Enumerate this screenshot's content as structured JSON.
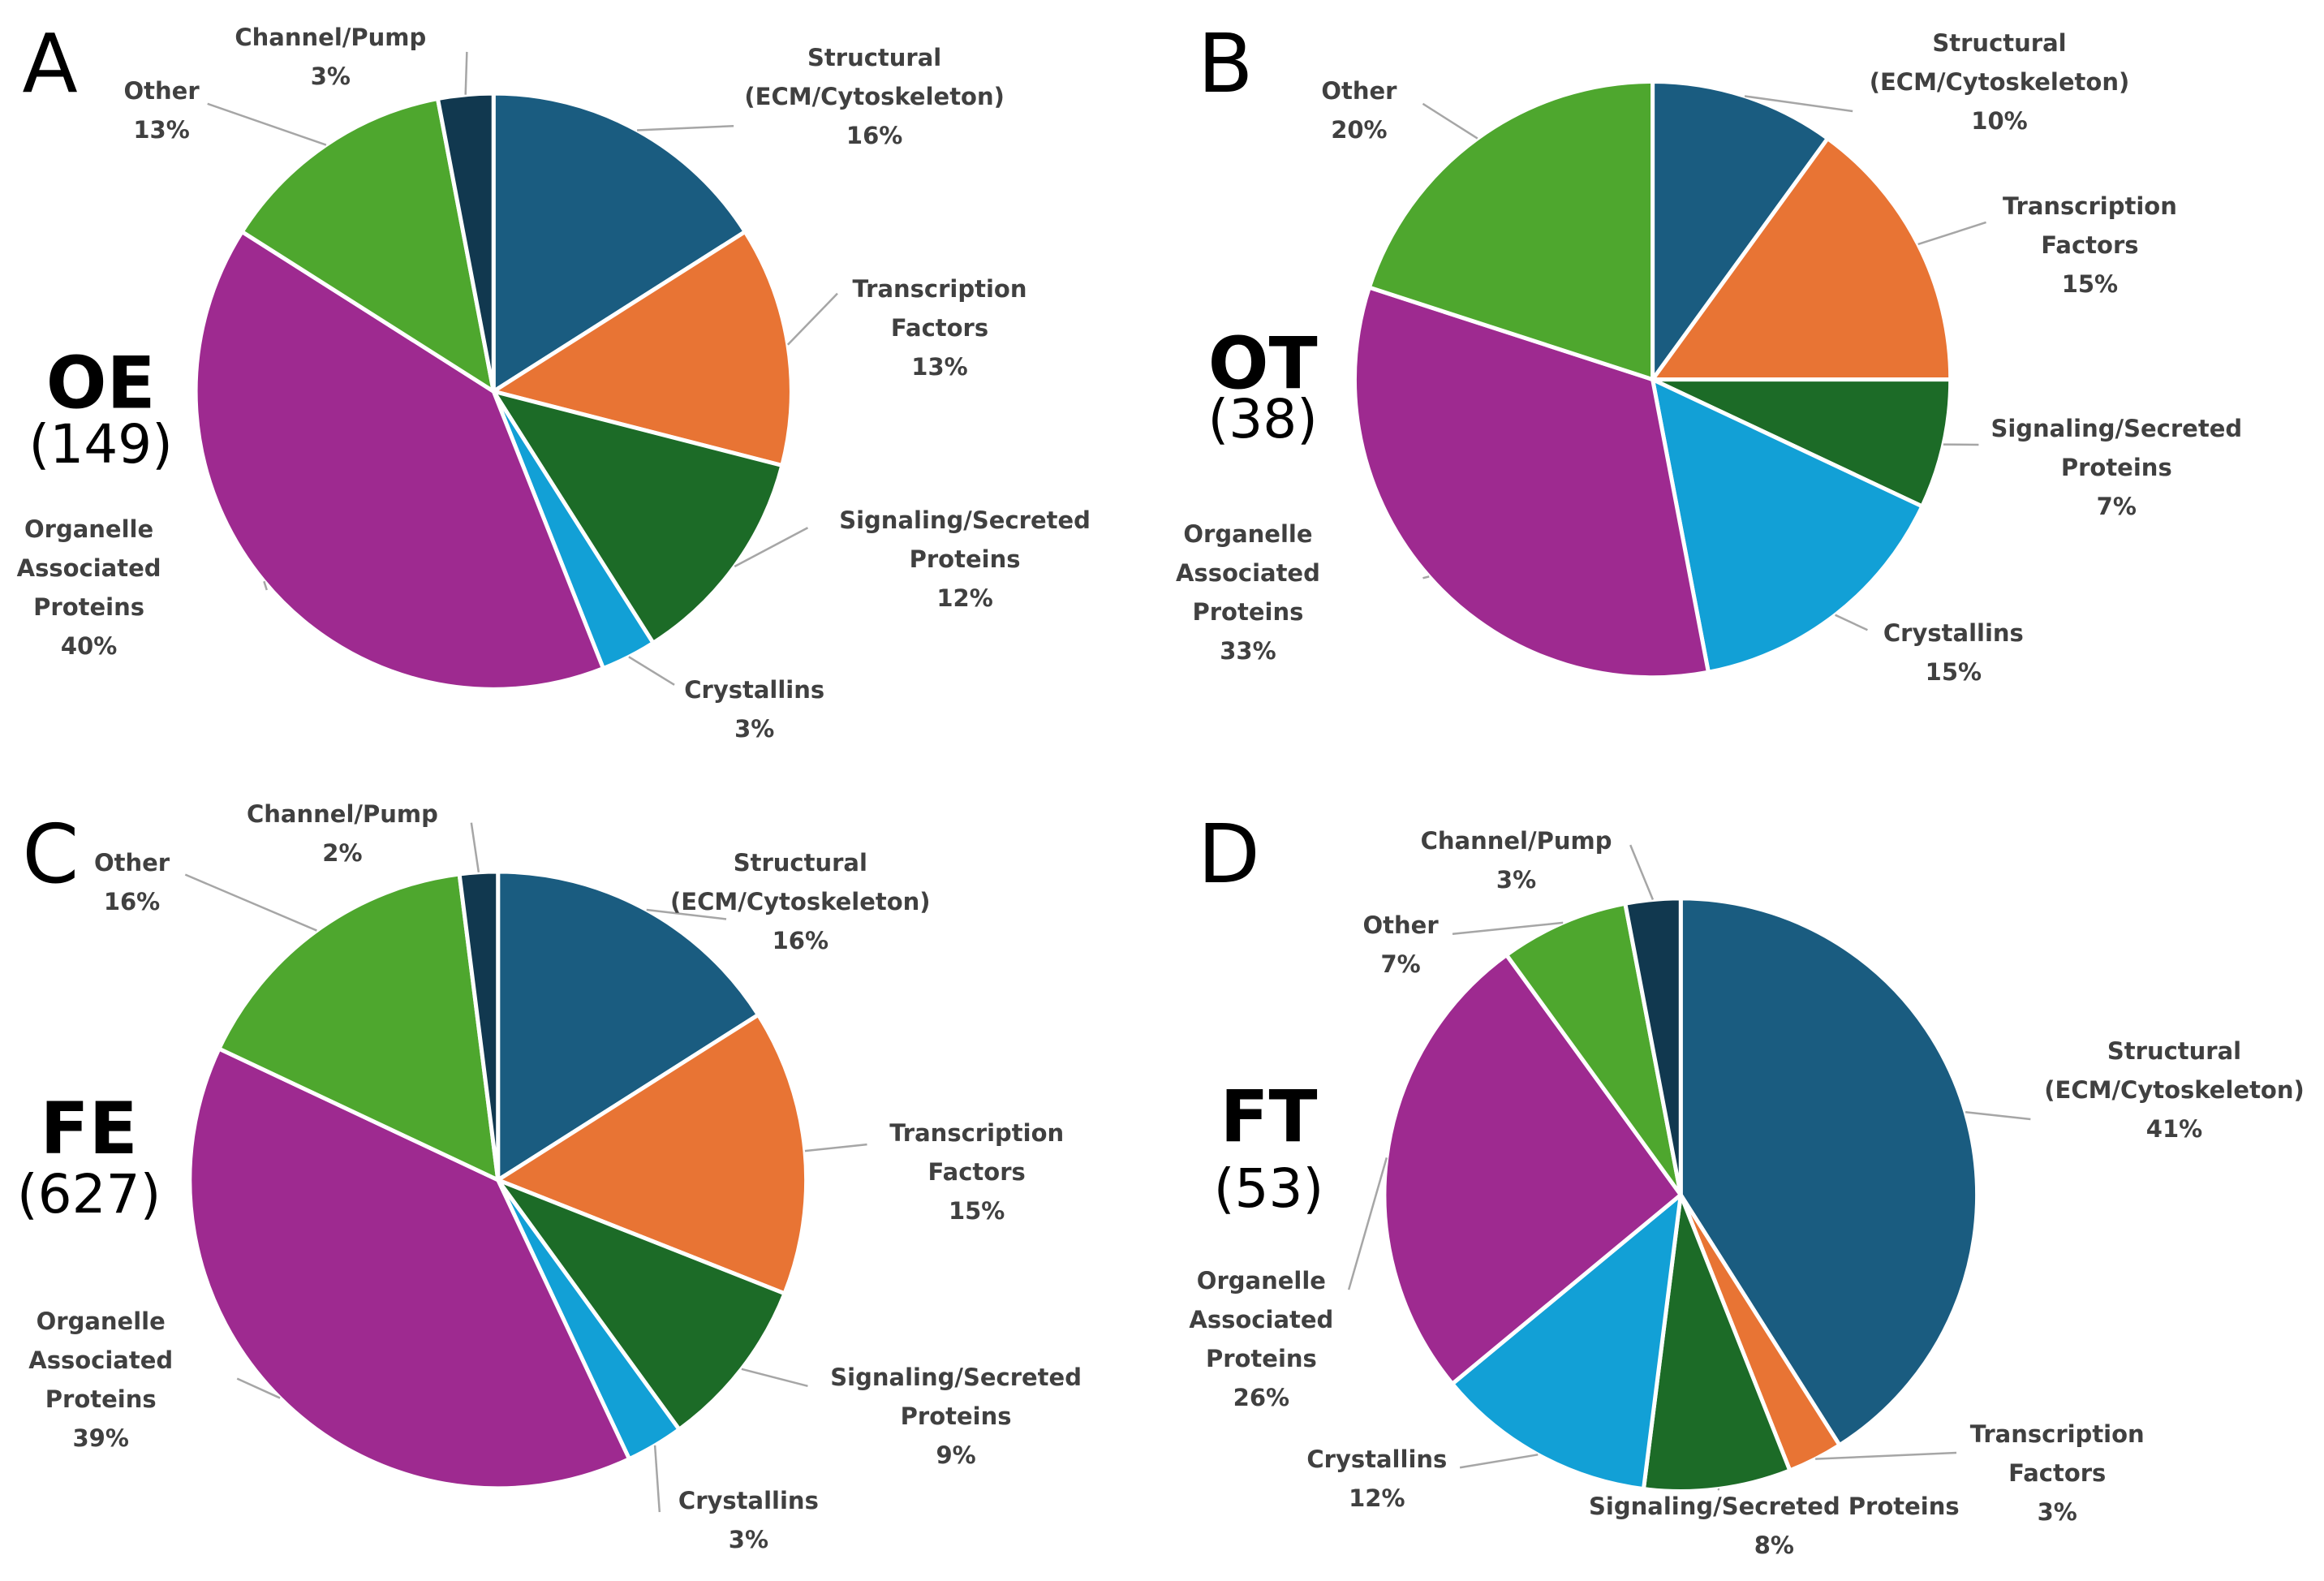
{
  "chart_data": [
    {
      "type": "pie",
      "panel": "A",
      "title": "OE",
      "subtitle": "(149)",
      "categories": [
        "Structural (ECM/Cytoskeleton)",
        "Transcription Factors",
        "Signaling/Secreted Proteins",
        "Crystallins",
        "Organelle Associated Proteins",
        "Other",
        "Channel/Pump"
      ],
      "values": [
        16,
        13,
        12,
        3,
        40,
        13,
        3
      ],
      "value_labels": [
        "16%",
        "13%",
        "12%",
        "3%",
        "40%",
        "13%",
        "3%"
      ],
      "colors": [
        "#1a5c80",
        "#e87434",
        "#1c6b27",
        "#12a0d6",
        "#9e2a90",
        "#4ea72e",
        "#11384f"
      ]
    },
    {
      "type": "pie",
      "panel": "B",
      "title": "OT",
      "subtitle": "(38)",
      "categories": [
        "Structural (ECM/Cytoskeleton)",
        "Transcription Factors",
        "Signaling/Secreted Proteins",
        "Crystallins",
        "Organelle Associated Proteins",
        "Other"
      ],
      "values": [
        10,
        15,
        7,
        15,
        33,
        20
      ],
      "value_labels": [
        "10%",
        "15%",
        "7%",
        "15%",
        "33%",
        "20%"
      ],
      "colors": [
        "#1a5c80",
        "#e87434",
        "#1c6b27",
        "#12a0d6",
        "#9e2a90",
        "#4ea72e"
      ]
    },
    {
      "type": "pie",
      "panel": "C",
      "title": "FE",
      "subtitle": "(627)",
      "categories": [
        "Structural (ECM/Cytoskeleton)",
        "Transcription Factors",
        "Signaling/Secreted Proteins",
        "Crystallins",
        "Organelle Associated Proteins",
        "Other",
        "Channel/Pump"
      ],
      "values": [
        16,
        15,
        9,
        3,
        39,
        16,
        2
      ],
      "value_labels": [
        "16%",
        "15%",
        "9%",
        "3%",
        "39%",
        "16%",
        "2%"
      ],
      "colors": [
        "#1a5c80",
        "#e87434",
        "#1c6b27",
        "#12a0d6",
        "#9e2a90",
        "#4ea72e",
        "#11384f"
      ]
    },
    {
      "type": "pie",
      "panel": "D",
      "title": "FT",
      "subtitle": "(53)",
      "categories": [
        "Structural (ECM/Cytoskeleton)",
        "Transcription Factors",
        "Signaling/Secreted Proteins",
        "Crystallins",
        "Organelle Associated Proteins",
        "Other",
        "Channel/Pump"
      ],
      "values": [
        41,
        3,
        8,
        12,
        26,
        7,
        3
      ],
      "value_labels": [
        "41%",
        "3%",
        "8%",
        "12%",
        "26%",
        "7%",
        "3%"
      ],
      "colors": [
        "#1a5c80",
        "#e87434",
        "#1c6b27",
        "#12a0d6",
        "#9e2a90",
        "#4ea72e",
        "#11384f"
      ]
    }
  ]
}
